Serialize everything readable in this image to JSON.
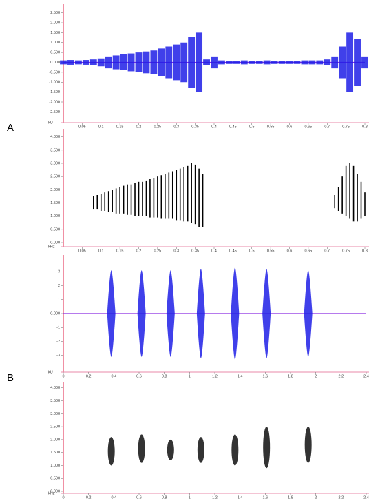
{
  "panel_labels": [
    "A",
    "B"
  ],
  "chart_data": [
    {
      "type": "waveform",
      "y_label": "kU",
      "color": "#1f1fe6",
      "x": [
        0,
        0.02,
        0.04,
        0.06,
        0.08,
        0.1,
        0.12,
        0.14,
        0.16,
        0.18,
        0.2,
        0.22,
        0.24,
        0.26,
        0.28,
        0.3,
        0.32,
        0.34,
        0.36,
        0.38,
        0.4,
        0.42,
        0.44,
        0.46,
        0.48,
        0.5,
        0.52,
        0.54,
        0.56,
        0.58,
        0.6,
        0.62,
        0.64,
        0.66,
        0.68,
        0.7,
        0.72,
        0.74,
        0.76,
        0.78,
        0.8
      ],
      "values": [
        0.1,
        0.12,
        0.1,
        0.12,
        0.15,
        0.2,
        0.3,
        0.35,
        0.4,
        0.45,
        0.5,
        0.55,
        0.6,
        0.7,
        0.8,
        0.9,
        1.0,
        1.3,
        1.5,
        0.15,
        0.3,
        0.1,
        0.08,
        0.08,
        0.1,
        0.08,
        0.08,
        0.1,
        0.08,
        0.08,
        0.08,
        0.08,
        0.1,
        0.1,
        0.1,
        0.15,
        0.3,
        0.8,
        1.5,
        1.2,
        0.3
      ],
      "xlim": [
        0,
        0.8
      ],
      "xticks": [
        0.05,
        0.1,
        0.15,
        0.2,
        0.25,
        0.3,
        0.35,
        0.4,
        0.45,
        0.5,
        0.55,
        0.6,
        0.65,
        0.7,
        0.75,
        0.8
      ],
      "ylim": [
        -2.8,
        2.8
      ],
      "yticks": [
        {
          "value": 2.5,
          "label": "2.500"
        },
        {
          "value": 2,
          "label": "2.000"
        },
        {
          "value": 1.5,
          "label": "1.500"
        },
        {
          "value": 1,
          "label": "1.000"
        },
        {
          "value": 0.5,
          "label": "0.500"
        },
        {
          "value": 0,
          "label": "0.000"
        },
        {
          "value": -0.5,
          "label": "-0.500"
        },
        {
          "value": -1,
          "label": "-1.000"
        },
        {
          "value": -1.5,
          "label": "-1.500"
        },
        {
          "value": -2,
          "label": "-2.000"
        },
        {
          "value": -2.5,
          "label": "-2.500"
        }
      ]
    },
    {
      "type": "spectrogram",
      "y_label": "kHz",
      "color": "#000000",
      "x": [
        0.08,
        0.09,
        0.1,
        0.11,
        0.12,
        0.13,
        0.14,
        0.15,
        0.16,
        0.17,
        0.18,
        0.19,
        0.2,
        0.21,
        0.22,
        0.23,
        0.24,
        0.25,
        0.26,
        0.27,
        0.28,
        0.29,
        0.3,
        0.31,
        0.32,
        0.33,
        0.34,
        0.35,
        0.36,
        0.37,
        0.72,
        0.73,
        0.74,
        0.75,
        0.76,
        0.77,
        0.78,
        0.79,
        0.8
      ],
      "low": [
        1.25,
        1.25,
        1.2,
        1.2,
        1.15,
        1.15,
        1.1,
        1.1,
        1.1,
        1.05,
        1.05,
        1.0,
        1.0,
        1.0,
        1.0,
        0.95,
        0.95,
        0.95,
        0.9,
        0.9,
        0.9,
        0.9,
        0.85,
        0.85,
        0.8,
        0.8,
        0.75,
        0.7,
        0.6,
        0.6,
        1.3,
        1.2,
        1.1,
        1.0,
        0.9,
        0.8,
        0.8,
        0.9,
        1.0
      ],
      "high": [
        1.75,
        1.8,
        1.85,
        1.9,
        1.95,
        2.0,
        2.05,
        2.1,
        2.15,
        2.2,
        2.2,
        2.25,
        2.3,
        2.3,
        2.35,
        2.4,
        2.45,
        2.5,
        2.55,
        2.6,
        2.65,
        2.7,
        2.75,
        2.8,
        2.85,
        2.9,
        3.0,
        2.95,
        2.8,
        2.6,
        1.8,
        2.1,
        2.5,
        2.9,
        3.0,
        2.9,
        2.6,
        2.3,
        1.9
      ],
      "xlim": [
        0,
        0.8
      ],
      "xticks": [
        0.05,
        0.1,
        0.15,
        0.2,
        0.25,
        0.3,
        0.35,
        0.4,
        0.45,
        0.5,
        0.55,
        0.6,
        0.65,
        0.7,
        0.75,
        0.8
      ],
      "ylim": [
        0,
        4.2
      ],
      "yticks": [
        {
          "value": 0,
          "label": "0.000"
        },
        {
          "value": 0.5,
          "label": "0.500"
        },
        {
          "value": 1,
          "label": "1.000"
        },
        {
          "value": 1.5,
          "label": "1.500"
        },
        {
          "value": 2,
          "label": "2.000"
        },
        {
          "value": 2.5,
          "label": "2.500"
        },
        {
          "value": 3,
          "label": "3.000"
        },
        {
          "value": 3.5,
          "label": "3.500"
        },
        {
          "value": 4,
          "label": "4.000"
        }
      ]
    },
    {
      "type": "burst-waveform",
      "y_label": "kU",
      "color": "#1f1fe6",
      "x": [
        0.38,
        0.62,
        0.85,
        1.09,
        1.36,
        1.61,
        1.94
      ],
      "values": [
        3.1,
        3.1,
        3.1,
        3.2,
        3.3,
        3.2,
        3.1
      ],
      "xlim": [
        0,
        2.4
      ],
      "xticks": [
        0,
        0.2,
        0.4,
        0.6,
        0.8,
        1,
        1.2,
        1.4,
        1.6,
        1.8,
        2,
        2.2,
        2.4
      ],
      "ylim": [
        -4,
        4
      ],
      "yticks": [
        3,
        2,
        1,
        {
          "value": 0,
          "label": "0.000"
        },
        -1,
        -2,
        -3
      ]
    },
    {
      "type": "burst-spectrogram",
      "y_label": "kHz",
      "color": "#000000",
      "x": [
        0.38,
        0.62,
        0.85,
        1.09,
        1.36,
        1.61,
        1.94
      ],
      "low": [
        1.0,
        1.1,
        1.2,
        1.1,
        1.0,
        0.9,
        1.1
      ],
      "high": [
        2.1,
        2.2,
        2.0,
        2.1,
        2.2,
        2.5,
        2.5
      ],
      "xlim": [
        0,
        2.4
      ],
      "xticks": [
        0,
        0.2,
        0.4,
        0.6,
        0.8,
        1,
        1.2,
        1.4,
        1.6,
        1.8,
        2,
        2.2,
        2.4
      ],
      "ylim": [
        0,
        4.1
      ],
      "yticks": [
        {
          "value": 0,
          "label": "0.000"
        },
        {
          "value": 0.5,
          "label": "0.500"
        },
        {
          "value": 1,
          "label": "1.000"
        },
        {
          "value": 1.5,
          "label": "1.500"
        },
        {
          "value": 2,
          "label": "2.000"
        },
        {
          "value": 2.5,
          "label": "2.500"
        },
        {
          "value": 3,
          "label": "3.000"
        },
        {
          "value": 3.5,
          "label": "3.500"
        },
        {
          "value": 4,
          "label": "4.000"
        }
      ]
    }
  ]
}
